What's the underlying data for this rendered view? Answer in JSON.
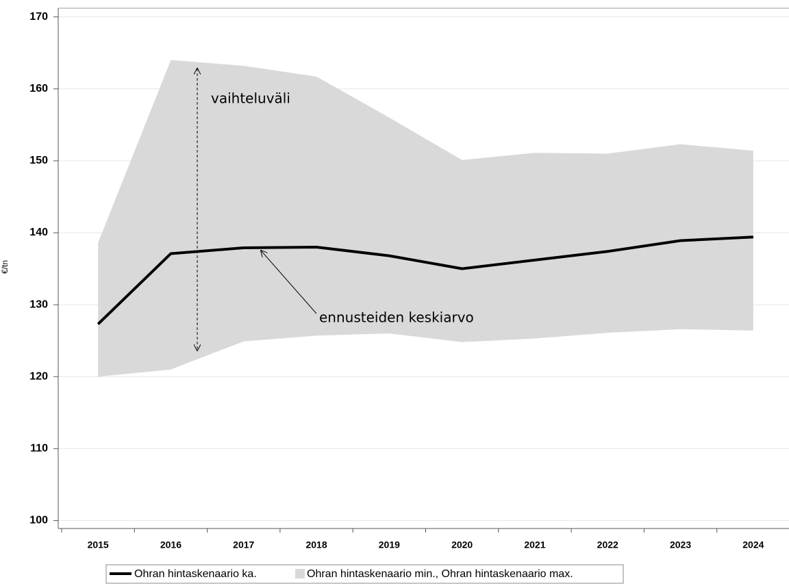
{
  "chart_data": {
    "type": "line",
    "y_label": "€/tn",
    "categories": [
      "2015",
      "2016",
      "2017",
      "2018",
      "2019",
      "2020",
      "2021",
      "2022",
      "2023",
      "2024"
    ],
    "series": [
      {
        "name": "Ohran hintaskenaario ka.",
        "color": "#000000",
        "values": [
          127.3,
          137.1,
          137.9,
          138.0,
          136.8,
          135.0,
          136.2,
          137.4,
          138.9,
          139.4
        ]
      }
    ],
    "band": {
      "name": "Ohran hintaskenaario min., Ohran hintaskenaario max.",
      "color": "#d9d9d9",
      "lower": [
        120.0,
        121.0,
        124.9,
        125.7,
        126.0,
        124.8,
        125.3,
        126.1,
        126.6,
        126.4
      ],
      "upper": [
        138.6,
        164.0,
        163.2,
        161.7,
        156.0,
        150.1,
        151.1,
        151.0,
        152.3,
        151.4
      ]
    },
    "annotations": [
      "vaihteluväli",
      "ennusteiden keskiarvo"
    ],
    "ylim": [
      98.9,
      171.2
    ],
    "yticks": [
      100,
      110,
      120,
      130,
      140,
      150,
      160,
      170
    ],
    "grid": true
  }
}
